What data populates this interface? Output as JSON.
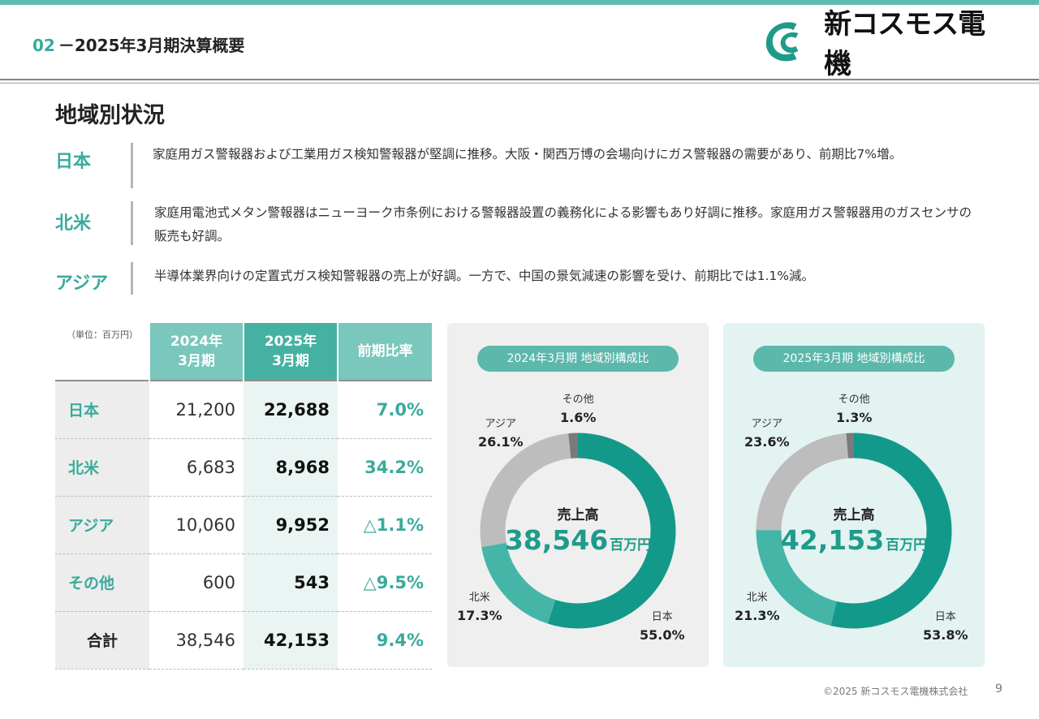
{
  "header": {
    "number": "02",
    "title": "－2025年3月期決算概要"
  },
  "logo": {
    "text": "新コスモス電機",
    "mark": "cosmos-logo-icon",
    "color": "#1e9b8a"
  },
  "section_title": "地域別状況",
  "regions": [
    {
      "name": "日本",
      "text": "家庭用ガス警報器および工業用ガス検知警報器が堅調に推移。大阪・関西万博の会場向けにガス警報器の需要があり、前期比7%増。"
    },
    {
      "name": "北米",
      "text": "家庭用電池式メタン警報器はニューヨーク市条例における警報器設置の義務化による影響もあり好調に推移。家庭用ガス警報器用のガスセンサの販売も好調。"
    },
    {
      "name": "アジア",
      "text": "半導体業界向けの定置式ガス検知警報器の売上が好調。一方で、中国の景気減速の影響を受け、前期比では1.1%減。"
    }
  ],
  "table": {
    "unit": "（単位：百万円）",
    "headers": [
      "2024年\n3月期",
      "2025年\n3月期",
      "前期比率"
    ],
    "rows": [
      {
        "name": "日本",
        "y2024": "21,200",
        "y2025": "22,688",
        "rate": "7.0%"
      },
      {
        "name": "北米",
        "y2024": "6,683",
        "y2025": "8,968",
        "rate": "34.2%"
      },
      {
        "name": "アジア",
        "y2024": "10,060",
        "y2025": "9,952",
        "rate": "△1.1%"
      },
      {
        "name": "その他",
        "y2024": "600",
        "y2025": "543",
        "rate": "△9.5%"
      },
      {
        "name": "合計",
        "y2024": "38,546",
        "y2025": "42,153",
        "rate": "9.4%"
      }
    ]
  },
  "colors": {
    "japan": "#13998a",
    "north_america": "#45b5a8",
    "asia": "#bdbdbd",
    "other": "#7a7a7a",
    "accent": "#3aaa9c"
  },
  "chart_data": [
    {
      "type": "pie",
      "title": "2024年3月期 地域別構成比",
      "center_title": "売上高",
      "center_value": "38,546",
      "center_unit": "百万円",
      "slices": [
        {
          "label": "日本",
          "value": 55.0,
          "display": "55.0%"
        },
        {
          "label": "北米",
          "value": 17.3,
          "display": "17.3%"
        },
        {
          "label": "アジア",
          "value": 26.1,
          "display": "26.1%"
        },
        {
          "label": "その他",
          "value": 1.6,
          "display": "1.6%"
        }
      ]
    },
    {
      "type": "pie",
      "title": "2025年3月期 地域別構成比",
      "center_title": "売上高",
      "center_value": "42,153",
      "center_unit": "百万円",
      "slices": [
        {
          "label": "日本",
          "value": 53.8,
          "display": "53.8%"
        },
        {
          "label": "北米",
          "value": 21.3,
          "display": "21.3%"
        },
        {
          "label": "アジア",
          "value": 23.6,
          "display": "23.6%"
        },
        {
          "label": "その他",
          "value": 1.3,
          "display": "1.3%"
        }
      ]
    }
  ],
  "footer": {
    "copyright": "©2025 新コスモス電機株式会社",
    "page": "9"
  }
}
